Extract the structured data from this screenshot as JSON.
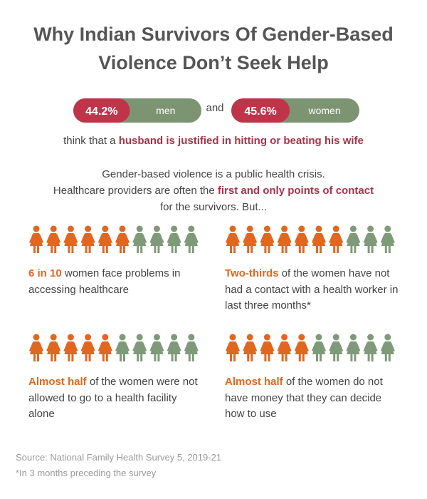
{
  "header": {
    "title": "Why Indian Survivors Of Gender-Based Violence Don’t Seek Help"
  },
  "pills": [
    {
      "value": 44.2,
      "label": "44.2%",
      "name": "men"
    },
    {
      "value": 45.6,
      "label": "45.6%",
      "name": "women"
    }
  ],
  "pill_joiner": "and",
  "statement": {
    "prefix": "think that a ",
    "highlight": "husband is justified in hitting or beating his wife"
  },
  "intro": {
    "line1": "Gender-based violence is a public health crisis.",
    "line2_prefix": "Healthcare providers are often the ",
    "line2_highlight": "first and only points of contact",
    "line3": "for the survivors. But..."
  },
  "panels": [
    {
      "highlighted": 6,
      "total": 10,
      "lead": "6 in 10",
      "text": " women face problems in accessing healthcare"
    },
    {
      "highlighted": 7,
      "total": 10,
      "lead": "Two-thirds",
      "text": " of the women have not had a contact with a health worker in last three months*"
    },
    {
      "highlighted": 5,
      "total": 10,
      "lead": "Almost half",
      "text": " of the women were not allowed to go to a health facility alone"
    },
    {
      "highlighted": 5,
      "total": 10,
      "lead": "Almost half",
      "text": " of the women do not have money that they can decide how to use"
    }
  ],
  "footer": {
    "source": "Source: National Family Health Survey 5, 2019-21",
    "note": "*In 3 months preceding the survey"
  }
}
